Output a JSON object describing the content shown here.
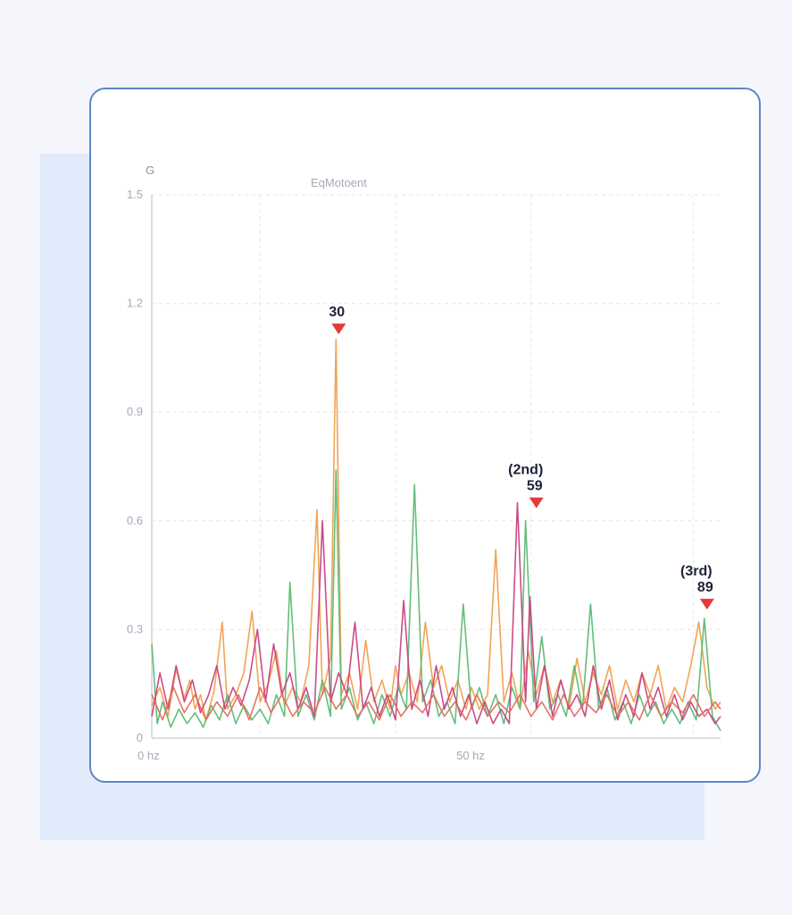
{
  "chart_data": {
    "type": "line",
    "title": "EqMotoent",
    "ylabel": "G",
    "xlabel": "",
    "ylim": [
      0,
      1.5
    ],
    "xlim": [
      0,
      105
    ],
    "y_ticks": [
      "0",
      "0.3",
      "0.6",
      "0.9",
      "1.2",
      "1.5"
    ],
    "x_ticks": [
      {
        "x": 0,
        "label": "0 hz"
      },
      {
        "x": 60,
        "label": "50 hz"
      }
    ],
    "grid": true,
    "colors": [
      "#f0a04b",
      "#5cbb73",
      "#c9427f",
      "#e46a5d"
    ],
    "series": [
      {
        "color": "#f0a04b",
        "points": [
          [
            0,
            0.09
          ],
          [
            1.5,
            0.14
          ],
          [
            3,
            0.06
          ],
          [
            4.5,
            0.19
          ],
          [
            6,
            0.11
          ],
          [
            7,
            0.16
          ],
          [
            8,
            0.08
          ],
          [
            9,
            0.12
          ],
          [
            10,
            0.05
          ],
          [
            11.5,
            0.13
          ],
          [
            13,
            0.32
          ],
          [
            14,
            0.08
          ],
          [
            15.5,
            0.12
          ],
          [
            17,
            0.18
          ],
          [
            18.5,
            0.35
          ],
          [
            20,
            0.1
          ],
          [
            21.5,
            0.15
          ],
          [
            23,
            0.24
          ],
          [
            24.5,
            0.09
          ],
          [
            26,
            0.14
          ],
          [
            27.5,
            0.1
          ],
          [
            29,
            0.2
          ],
          [
            30.5,
            0.63
          ],
          [
            31.5,
            0.12
          ],
          [
            33,
            0.22
          ],
          [
            34,
            1.1
          ],
          [
            35,
            0.12
          ],
          [
            36.5,
            0.18
          ],
          [
            38,
            0.08
          ],
          [
            39.5,
            0.27
          ],
          [
            41,
            0.1
          ],
          [
            42.5,
            0.16
          ],
          [
            44,
            0.08
          ],
          [
            45,
            0.2
          ],
          [
            46,
            0.12
          ],
          [
            47.5,
            0.18
          ],
          [
            49,
            0.1
          ],
          [
            50.5,
            0.32
          ],
          [
            52,
            0.14
          ],
          [
            53.5,
            0.2
          ],
          [
            55,
            0.1
          ],
          [
            56.5,
            0.16
          ],
          [
            58,
            0.08
          ],
          [
            59,
            0.14
          ],
          [
            60.5,
            0.08
          ],
          [
            62,
            0.12
          ],
          [
            63.5,
            0.52
          ],
          [
            65,
            0.1
          ],
          [
            66.5,
            0.18
          ],
          [
            68,
            0.08
          ],
          [
            69.5,
            0.24
          ],
          [
            71,
            0.12
          ],
          [
            72.5,
            0.2
          ],
          [
            74,
            0.1
          ],
          [
            75.5,
            0.16
          ],
          [
            77,
            0.08
          ],
          [
            78.5,
            0.22
          ],
          [
            80,
            0.1
          ],
          [
            81.5,
            0.18
          ],
          [
            83,
            0.12
          ],
          [
            84.5,
            0.2
          ],
          [
            86,
            0.08
          ],
          [
            87.5,
            0.16
          ],
          [
            89,
            0.1
          ],
          [
            90.5,
            0.18
          ],
          [
            92,
            0.12
          ],
          [
            93.5,
            0.2
          ],
          [
            95,
            0.08
          ],
          [
            96.5,
            0.14
          ],
          [
            98,
            0.1
          ],
          [
            99.5,
            0.2
          ],
          [
            101,
            0.32
          ],
          [
            102.5,
            0.14
          ],
          [
            104,
            0.08
          ],
          [
            105,
            0.1
          ]
        ]
      },
      {
        "color": "#5cbb73",
        "points": [
          [
            0,
            0.26
          ],
          [
            1,
            0.04
          ],
          [
            2,
            0.1
          ],
          [
            3.5,
            0.03
          ],
          [
            5,
            0.08
          ],
          [
            6.5,
            0.04
          ],
          [
            8,
            0.07
          ],
          [
            9.5,
            0.03
          ],
          [
            11,
            0.09
          ],
          [
            12.5,
            0.05
          ],
          [
            14,
            0.12
          ],
          [
            15.5,
            0.04
          ],
          [
            17,
            0.09
          ],
          [
            18.5,
            0.05
          ],
          [
            20,
            0.08
          ],
          [
            21.5,
            0.04
          ],
          [
            23,
            0.12
          ],
          [
            24.5,
            0.06
          ],
          [
            25.5,
            0.43
          ],
          [
            27,
            0.06
          ],
          [
            28.5,
            0.12
          ],
          [
            30,
            0.05
          ],
          [
            31.5,
            0.16
          ],
          [
            33,
            0.06
          ],
          [
            34,
            0.74
          ],
          [
            35,
            0.08
          ],
          [
            36.5,
            0.14
          ],
          [
            38,
            0.05
          ],
          [
            39.5,
            0.1
          ],
          [
            41,
            0.04
          ],
          [
            42.5,
            0.12
          ],
          [
            44,
            0.06
          ],
          [
            45.5,
            0.14
          ],
          [
            47,
            0.08
          ],
          [
            48.5,
            0.7
          ],
          [
            50,
            0.1
          ],
          [
            51.5,
            0.16
          ],
          [
            53,
            0.06
          ],
          [
            54.5,
            0.1
          ],
          [
            56,
            0.04
          ],
          [
            57.5,
            0.37
          ],
          [
            59,
            0.08
          ],
          [
            60.5,
            0.14
          ],
          [
            62,
            0.06
          ],
          [
            63.5,
            0.12
          ],
          [
            65,
            0.04
          ],
          [
            66.5,
            0.14
          ],
          [
            68,
            0.08
          ],
          [
            69,
            0.6
          ],
          [
            70.5,
            0.1
          ],
          [
            72,
            0.28
          ],
          [
            73.5,
            0.08
          ],
          [
            75,
            0.12
          ],
          [
            76.5,
            0.06
          ],
          [
            78,
            0.2
          ],
          [
            79.5,
            0.08
          ],
          [
            81,
            0.37
          ],
          [
            82.5,
            0.08
          ],
          [
            84,
            0.14
          ],
          [
            85.5,
            0.05
          ],
          [
            87,
            0.1
          ],
          [
            88.5,
            0.04
          ],
          [
            90,
            0.12
          ],
          [
            91.5,
            0.06
          ],
          [
            93,
            0.1
          ],
          [
            94.5,
            0.04
          ],
          [
            96,
            0.08
          ],
          [
            97.5,
            0.04
          ],
          [
            99,
            0.1
          ],
          [
            100.5,
            0.05
          ],
          [
            102,
            0.33
          ],
          [
            103.5,
            0.06
          ],
          [
            105,
            0.02
          ]
        ]
      },
      {
        "color": "#c9427f",
        "points": [
          [
            0,
            0.06
          ],
          [
            1.5,
            0.18
          ],
          [
            3,
            0.08
          ],
          [
            4.5,
            0.2
          ],
          [
            6,
            0.1
          ],
          [
            7.5,
            0.16
          ],
          [
            9,
            0.07
          ],
          [
            10.5,
            0.12
          ],
          [
            12,
            0.2
          ],
          [
            13.5,
            0.08
          ],
          [
            15,
            0.14
          ],
          [
            16.5,
            0.09
          ],
          [
            18,
            0.16
          ],
          [
            19.5,
            0.3
          ],
          [
            21,
            0.1
          ],
          [
            22.5,
            0.26
          ],
          [
            24,
            0.12
          ],
          [
            25.5,
            0.18
          ],
          [
            27,
            0.08
          ],
          [
            28.5,
            0.14
          ],
          [
            30,
            0.06
          ],
          [
            31.5,
            0.6
          ],
          [
            33,
            0.1
          ],
          [
            34.5,
            0.18
          ],
          [
            36,
            0.12
          ],
          [
            37.5,
            0.32
          ],
          [
            39,
            0.08
          ],
          [
            40.5,
            0.14
          ],
          [
            42,
            0.06
          ],
          [
            43.5,
            0.12
          ],
          [
            45,
            0.05
          ],
          [
            46.5,
            0.38
          ],
          [
            48,
            0.08
          ],
          [
            49.5,
            0.16
          ],
          [
            51,
            0.06
          ],
          [
            52.5,
            0.2
          ],
          [
            54,
            0.08
          ],
          [
            55.5,
            0.14
          ],
          [
            57,
            0.06
          ],
          [
            58.5,
            0.12
          ],
          [
            60,
            0.04
          ],
          [
            61.5,
            0.1
          ],
          [
            63,
            0.04
          ],
          [
            64.5,
            0.08
          ],
          [
            66,
            0.04
          ],
          [
            67.5,
            0.65
          ],
          [
            69,
            0.1
          ],
          [
            69.8,
            0.39
          ],
          [
            71,
            0.08
          ],
          [
            72.5,
            0.2
          ],
          [
            74,
            0.06
          ],
          [
            75.5,
            0.16
          ],
          [
            77,
            0.08
          ],
          [
            78.5,
            0.12
          ],
          [
            80,
            0.06
          ],
          [
            81.5,
            0.2
          ],
          [
            83,
            0.08
          ],
          [
            84.5,
            0.16
          ],
          [
            86,
            0.05
          ],
          [
            87.5,
            0.12
          ],
          [
            89,
            0.06
          ],
          [
            90.5,
            0.18
          ],
          [
            92,
            0.08
          ],
          [
            93.5,
            0.14
          ],
          [
            95,
            0.06
          ],
          [
            96.5,
            0.12
          ],
          [
            98,
            0.05
          ],
          [
            99.5,
            0.1
          ],
          [
            101,
            0.06
          ],
          [
            102.5,
            0.08
          ],
          [
            104,
            0.04
          ],
          [
            105,
            0.06
          ]
        ]
      },
      {
        "color": "#e46a5d",
        "points": [
          [
            0,
            0.12
          ],
          [
            2,
            0.05
          ],
          [
            4,
            0.14
          ],
          [
            6,
            0.07
          ],
          [
            8,
            0.12
          ],
          [
            10,
            0.05
          ],
          [
            12,
            0.1
          ],
          [
            14,
            0.06
          ],
          [
            16,
            0.12
          ],
          [
            18,
            0.05
          ],
          [
            20,
            0.14
          ],
          [
            22,
            0.07
          ],
          [
            24,
            0.12
          ],
          [
            26,
            0.06
          ],
          [
            28,
            0.1
          ],
          [
            30,
            0.07
          ],
          [
            32,
            0.14
          ],
          [
            34,
            0.08
          ],
          [
            36,
            0.12
          ],
          [
            38,
            0.06
          ],
          [
            40,
            0.1
          ],
          [
            42,
            0.05
          ],
          [
            44,
            0.12
          ],
          [
            46,
            0.06
          ],
          [
            48,
            0.1
          ],
          [
            50,
            0.07
          ],
          [
            52,
            0.12
          ],
          [
            54,
            0.06
          ],
          [
            56,
            0.1
          ],
          [
            58,
            0.05
          ],
          [
            60,
            0.12
          ],
          [
            62,
            0.06
          ],
          [
            64,
            0.1
          ],
          [
            66,
            0.07
          ],
          [
            68,
            0.12
          ],
          [
            70,
            0.06
          ],
          [
            72,
            0.1
          ],
          [
            74,
            0.05
          ],
          [
            76,
            0.12
          ],
          [
            78,
            0.06
          ],
          [
            80,
            0.1
          ],
          [
            82,
            0.07
          ],
          [
            84,
            0.12
          ],
          [
            86,
            0.06
          ],
          [
            88,
            0.1
          ],
          [
            90,
            0.05
          ],
          [
            92,
            0.12
          ],
          [
            94,
            0.06
          ],
          [
            96,
            0.1
          ],
          [
            98,
            0.07
          ],
          [
            100,
            0.12
          ],
          [
            102,
            0.06
          ],
          [
            104,
            0.1
          ],
          [
            105,
            0.08
          ]
        ]
      }
    ],
    "annotations": [
      {
        "x": 34.5,
        "y": 1.1,
        "lines": [
          "30"
        ]
      },
      {
        "x": 71,
        "y": 0.62,
        "lines": [
          "(2nd)",
          "59"
        ]
      },
      {
        "x": 102.5,
        "y": 0.34,
        "lines": [
          "(3rd)",
          "89"
        ]
      }
    ]
  }
}
